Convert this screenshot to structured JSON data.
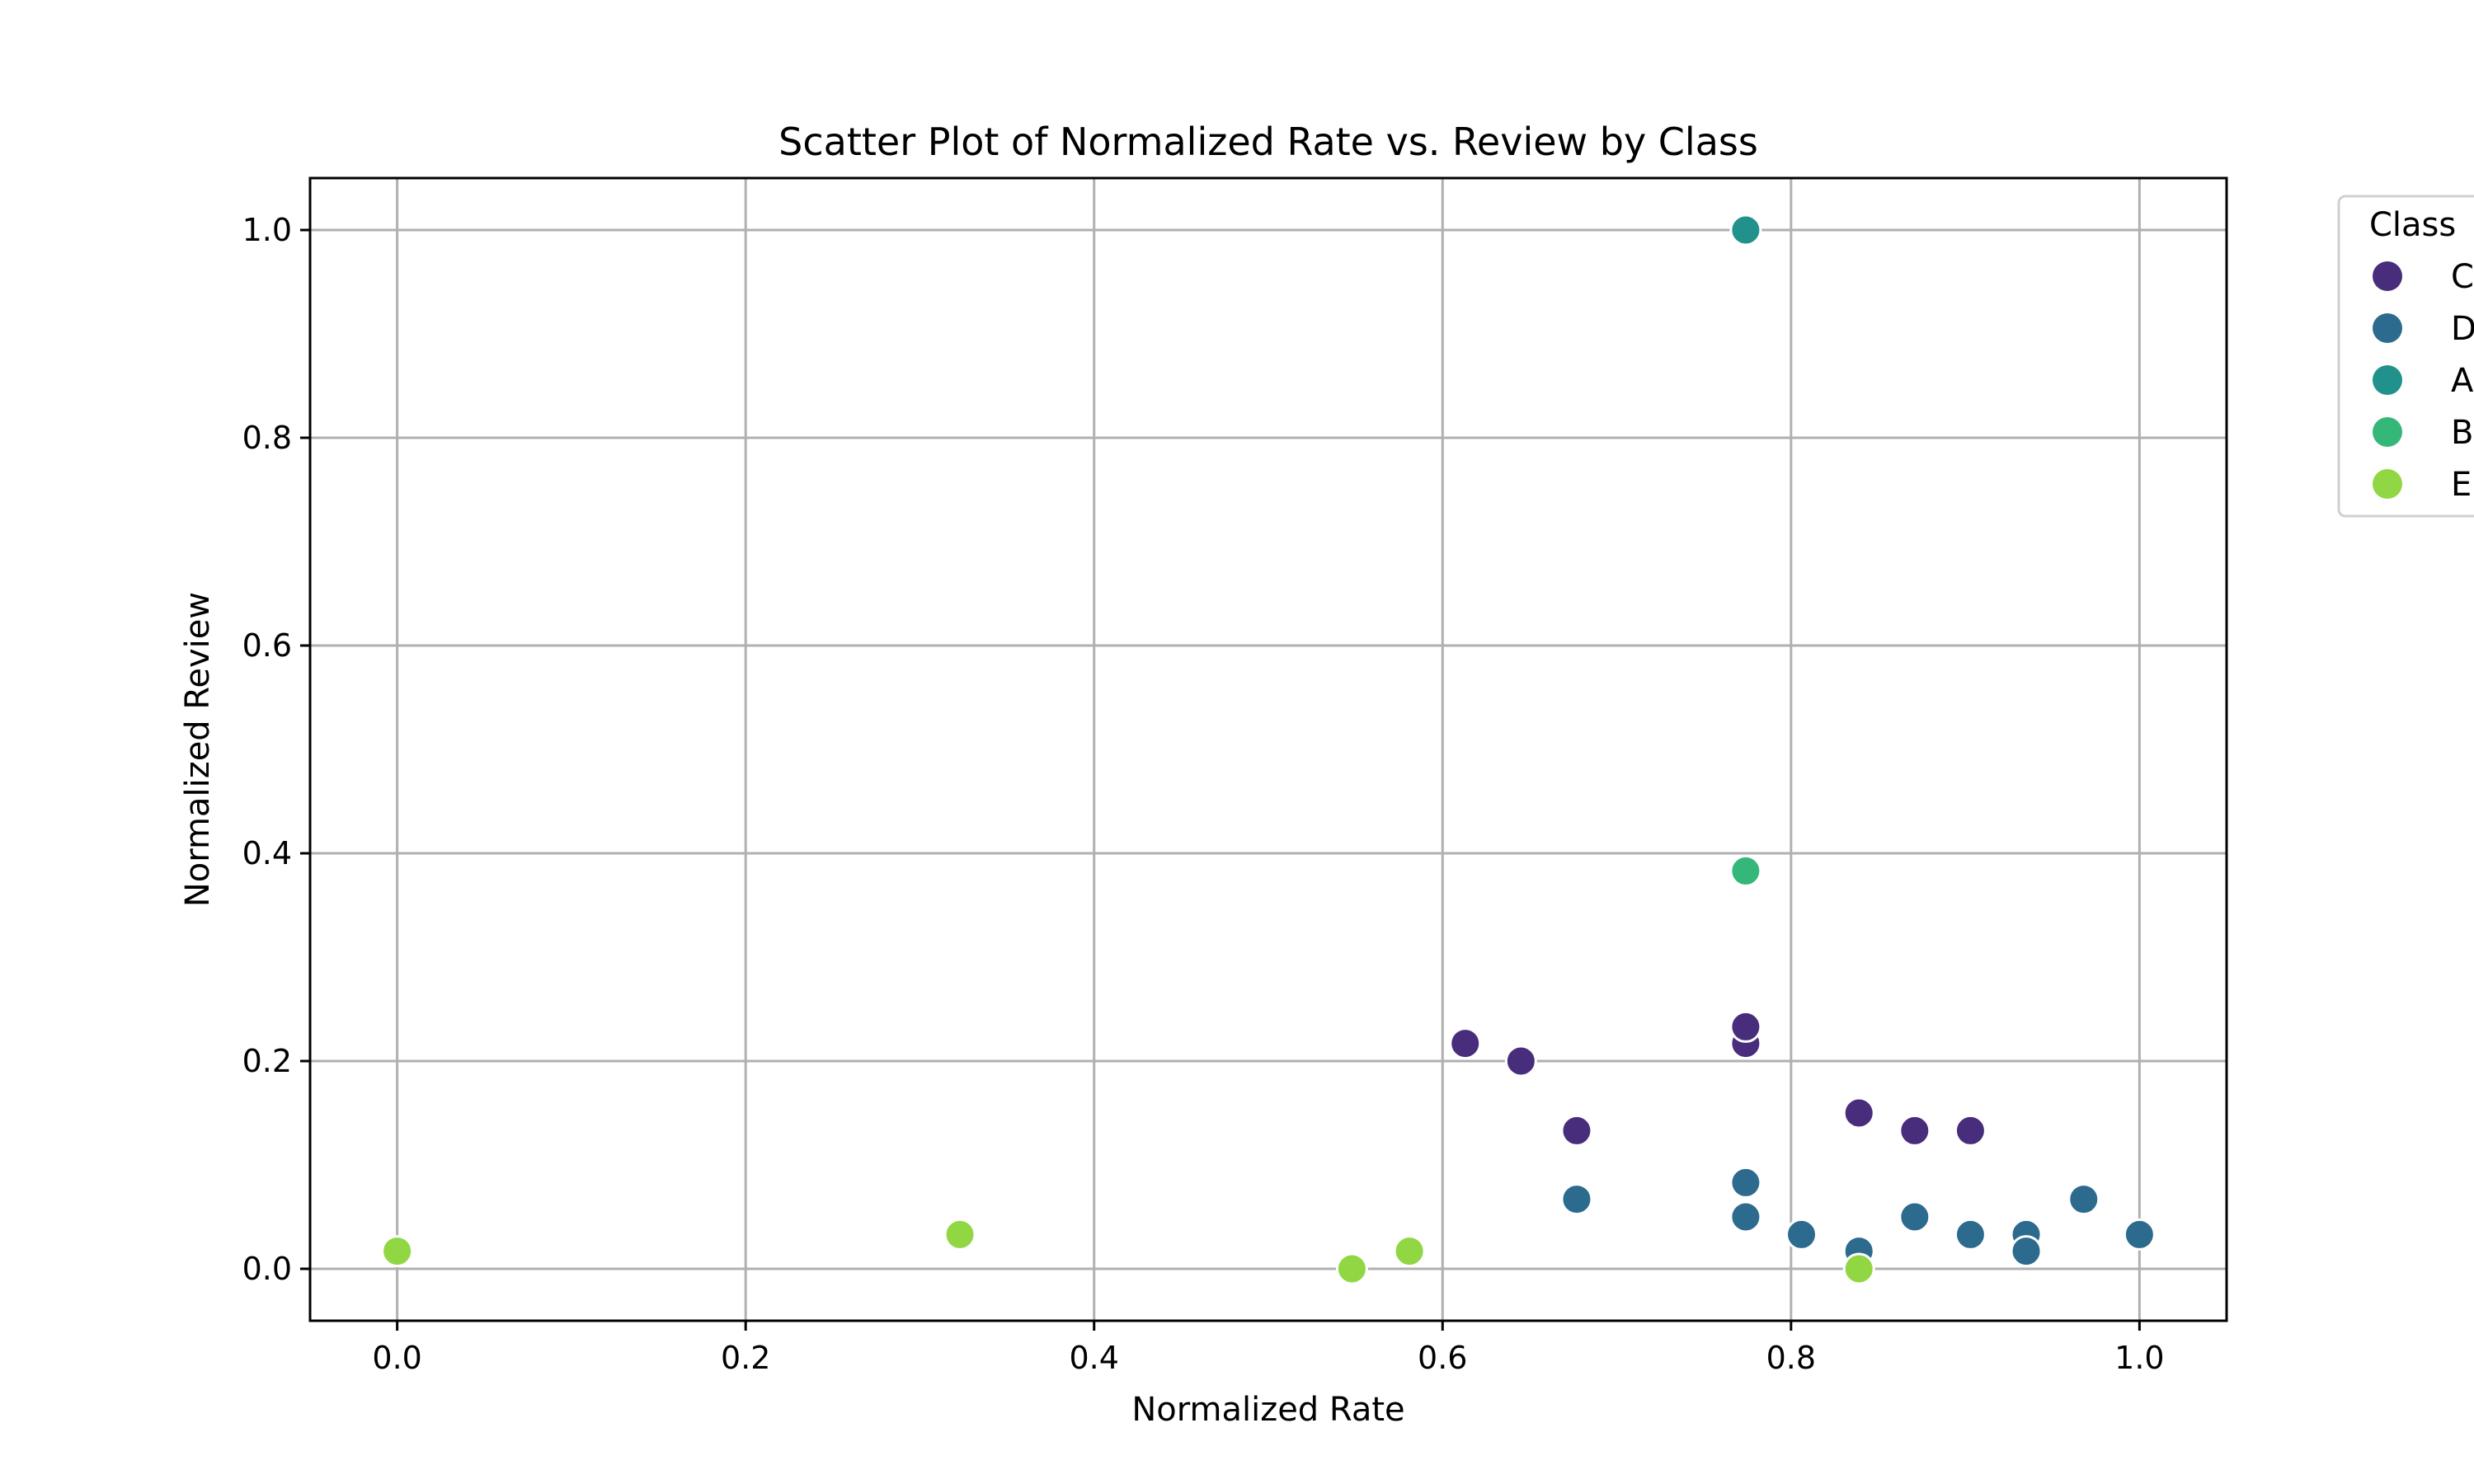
{
  "chart_data": {
    "type": "scatter",
    "title": "Scatter Plot of Normalized Rate vs. Review by Class",
    "xlabel": "Normalized Rate",
    "ylabel": "Normalized Review",
    "xlim": [
      -0.05,
      1.05
    ],
    "ylim": [
      -0.05,
      1.05
    ],
    "xticks": [
      "0.0",
      "0.2",
      "0.4",
      "0.6",
      "0.8",
      "1.0"
    ],
    "yticks": [
      "0.0",
      "0.2",
      "0.4",
      "0.6",
      "0.8",
      "1.0"
    ],
    "grid": true,
    "legend": {
      "title": "Class",
      "placement": "outside-top-right"
    },
    "series": [
      {
        "name": "C",
        "color": "#472d7b",
        "points": [
          [
            0.613,
            0.217
          ],
          [
            0.645,
            0.2
          ],
          [
            0.677,
            0.133
          ],
          [
            0.774,
            0.217
          ],
          [
            0.774,
            0.233
          ],
          [
            0.839,
            0.15
          ],
          [
            0.871,
            0.133
          ],
          [
            0.903,
            0.133
          ]
        ]
      },
      {
        "name": "D",
        "color": "#2c6b8e",
        "points": [
          [
            0.677,
            0.067
          ],
          [
            0.774,
            0.083
          ],
          [
            0.774,
            0.05
          ],
          [
            0.806,
            0.033
          ],
          [
            0.839,
            0.017
          ],
          [
            0.871,
            0.05
          ],
          [
            0.903,
            0.033
          ],
          [
            0.935,
            0.033
          ],
          [
            0.935,
            0.017
          ],
          [
            0.968,
            0.067
          ],
          [
            1.0,
            0.033
          ]
        ]
      },
      {
        "name": "A",
        "color": "#21918c",
        "points": [
          [
            0.774,
            1.0
          ]
        ]
      },
      {
        "name": "B",
        "color": "#35b779",
        "points": [
          [
            0.774,
            0.383
          ]
        ]
      },
      {
        "name": "E",
        "color": "#90d743",
        "points": [
          [
            0.0,
            0.017
          ],
          [
            0.323,
            0.033
          ],
          [
            0.548,
            0.0
          ],
          [
            0.581,
            0.017
          ],
          [
            0.839,
            0.0
          ]
        ]
      }
    ]
  }
}
